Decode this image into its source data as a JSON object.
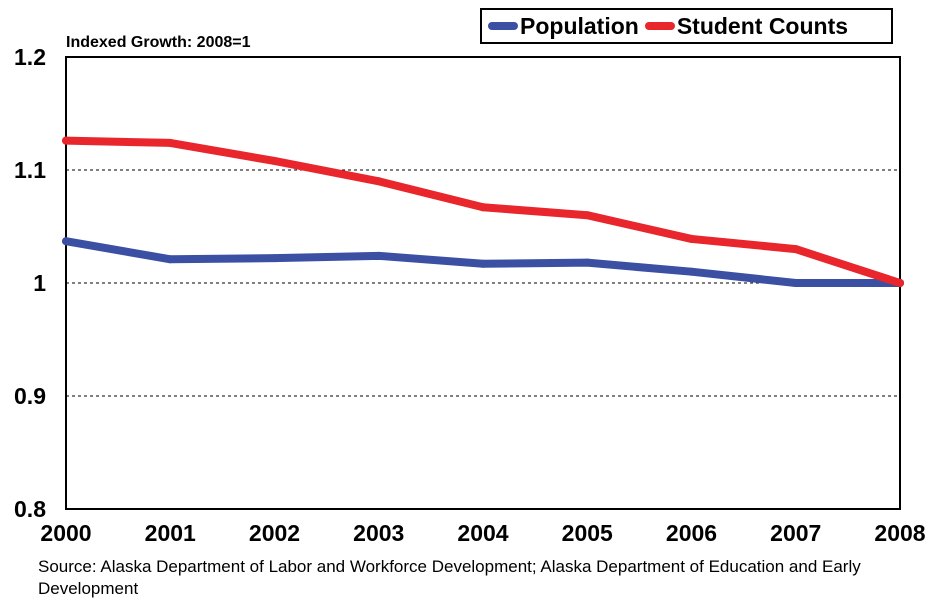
{
  "chart_data": {
    "type": "line",
    "title": "",
    "subtitle": "Indexed Growth: 2008=1",
    "xlabel": "",
    "ylabel": "",
    "categories": [
      "2000",
      "2001",
      "2002",
      "2003",
      "2004",
      "2005",
      "2006",
      "2007",
      "2008"
    ],
    "yticks": [
      "0.8",
      "0.9",
      "1",
      "1.1",
      "1.2"
    ],
    "ylim": [
      0.8,
      1.2
    ],
    "grid": "horizontal dashed",
    "legend_position": "top-right",
    "series": [
      {
        "name": "Population",
        "color": "#3b4fa3",
        "values": [
          1.037,
          1.021,
          1.022,
          1.024,
          1.017,
          1.018,
          1.01,
          1.0,
          1.0
        ]
      },
      {
        "name": "Student Counts",
        "color": "#e8262b",
        "values": [
          1.126,
          1.124,
          1.108,
          1.09,
          1.067,
          1.06,
          1.039,
          1.03,
          1.0
        ]
      }
    ]
  },
  "source": "Source: Alaska Department of Labor and Workforce Development; Alaska Department of Education and Early Development"
}
